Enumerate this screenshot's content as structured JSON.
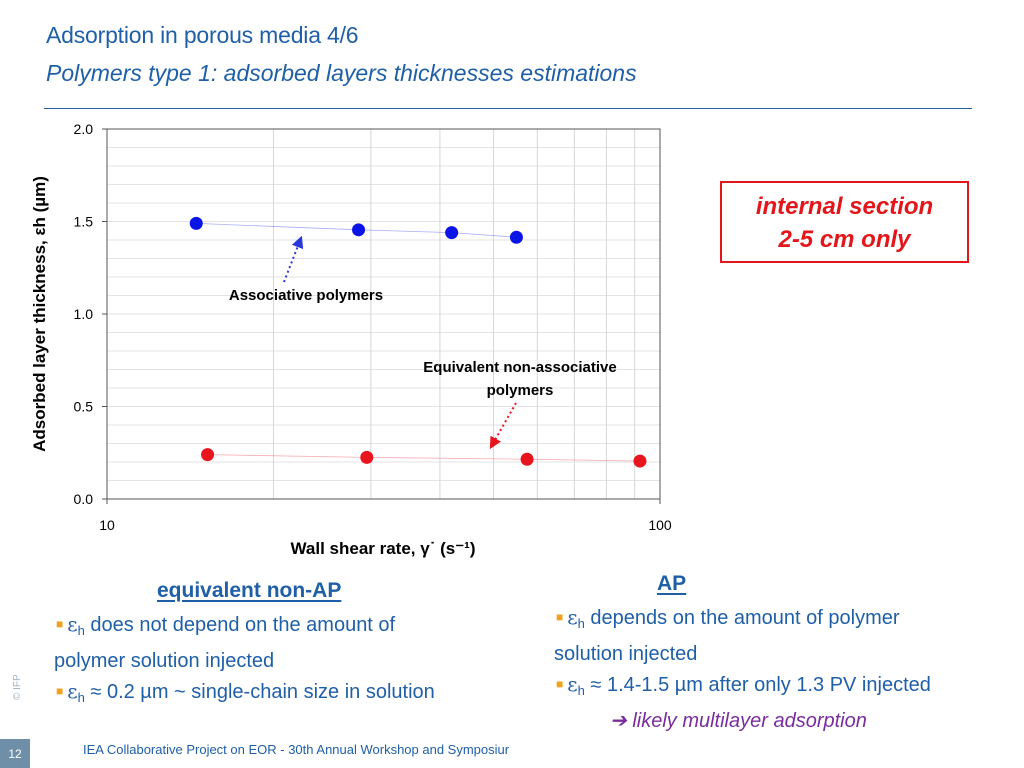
{
  "slide": {
    "title": "Adsorption in porous media 4/6",
    "subtitle": "Polymers type 1: adsorbed layers thicknesses estimations",
    "page_number": "12",
    "footer": "IEA Collaborative Project on EOR - 30th Annual Workshop and Symposiur",
    "copyright": "© IFP"
  },
  "callout": {
    "line1": "internal section",
    "line2": "2-5 cm only"
  },
  "colors": {
    "title_blue": "#1f5fa8",
    "ap_blue": "#0a14e6",
    "nonap_red": "#e8141e",
    "orange_bullet": "#f0a21e",
    "purple": "#7a2d9e"
  },
  "chart_data": {
    "type": "scatter",
    "x_scale": "log",
    "xlim": [
      10,
      100
    ],
    "ylim": [
      0,
      2
    ],
    "x_ticks": [
      "10",
      "100"
    ],
    "y_ticks": [
      "0.0",
      "0.5",
      "1.0",
      "1.5",
      "2.0"
    ],
    "xlabel": "Wall shear rate, γ˙ (s⁻¹)",
    "ylabel": "Adsorbed layer thickness, εh (µm)",
    "grid": true,
    "annotations": {
      "ap": "Associative polymers",
      "nonap_line1": "Equivalent non-associative",
      "nonap_line2": "polymers"
    },
    "series": [
      {
        "color": "#0a14e6",
        "x": [
          14.5,
          28.5,
          42,
          55
        ],
        "y": [
          1.49,
          1.455,
          1.44,
          1.415
        ]
      },
      {
        "color": "#e8141e",
        "x": [
          15.2,
          29.5,
          57.5,
          92
        ],
        "y": [
          0.24,
          0.225,
          0.215,
          0.205
        ]
      }
    ]
  },
  "nonap": {
    "heading": "equivalent non-AP",
    "b1_eps": "ε",
    "b1_sub": "h",
    "b1_text": " does not depend on the amount of",
    "b1_cont": "polymer solution injected",
    "b2_eps": "ε",
    "b2_sub": "h",
    "b2_text": " ≈ 0.2 µm ~ single-chain size in solution"
  },
  "ap": {
    "heading": "AP",
    "b1_eps": "ε",
    "b1_sub": "h",
    "b1_text": " depends on the amount of polymer",
    "b1_cont": "solution injected",
    "b2_eps": "ε",
    "b2_sub": "h",
    "b2_text": " ≈ 1.4-1.5 µm after only 1.3 PV injected",
    "b3_arrow": "➔",
    "b3_text": " likely multilayer adsorption"
  }
}
